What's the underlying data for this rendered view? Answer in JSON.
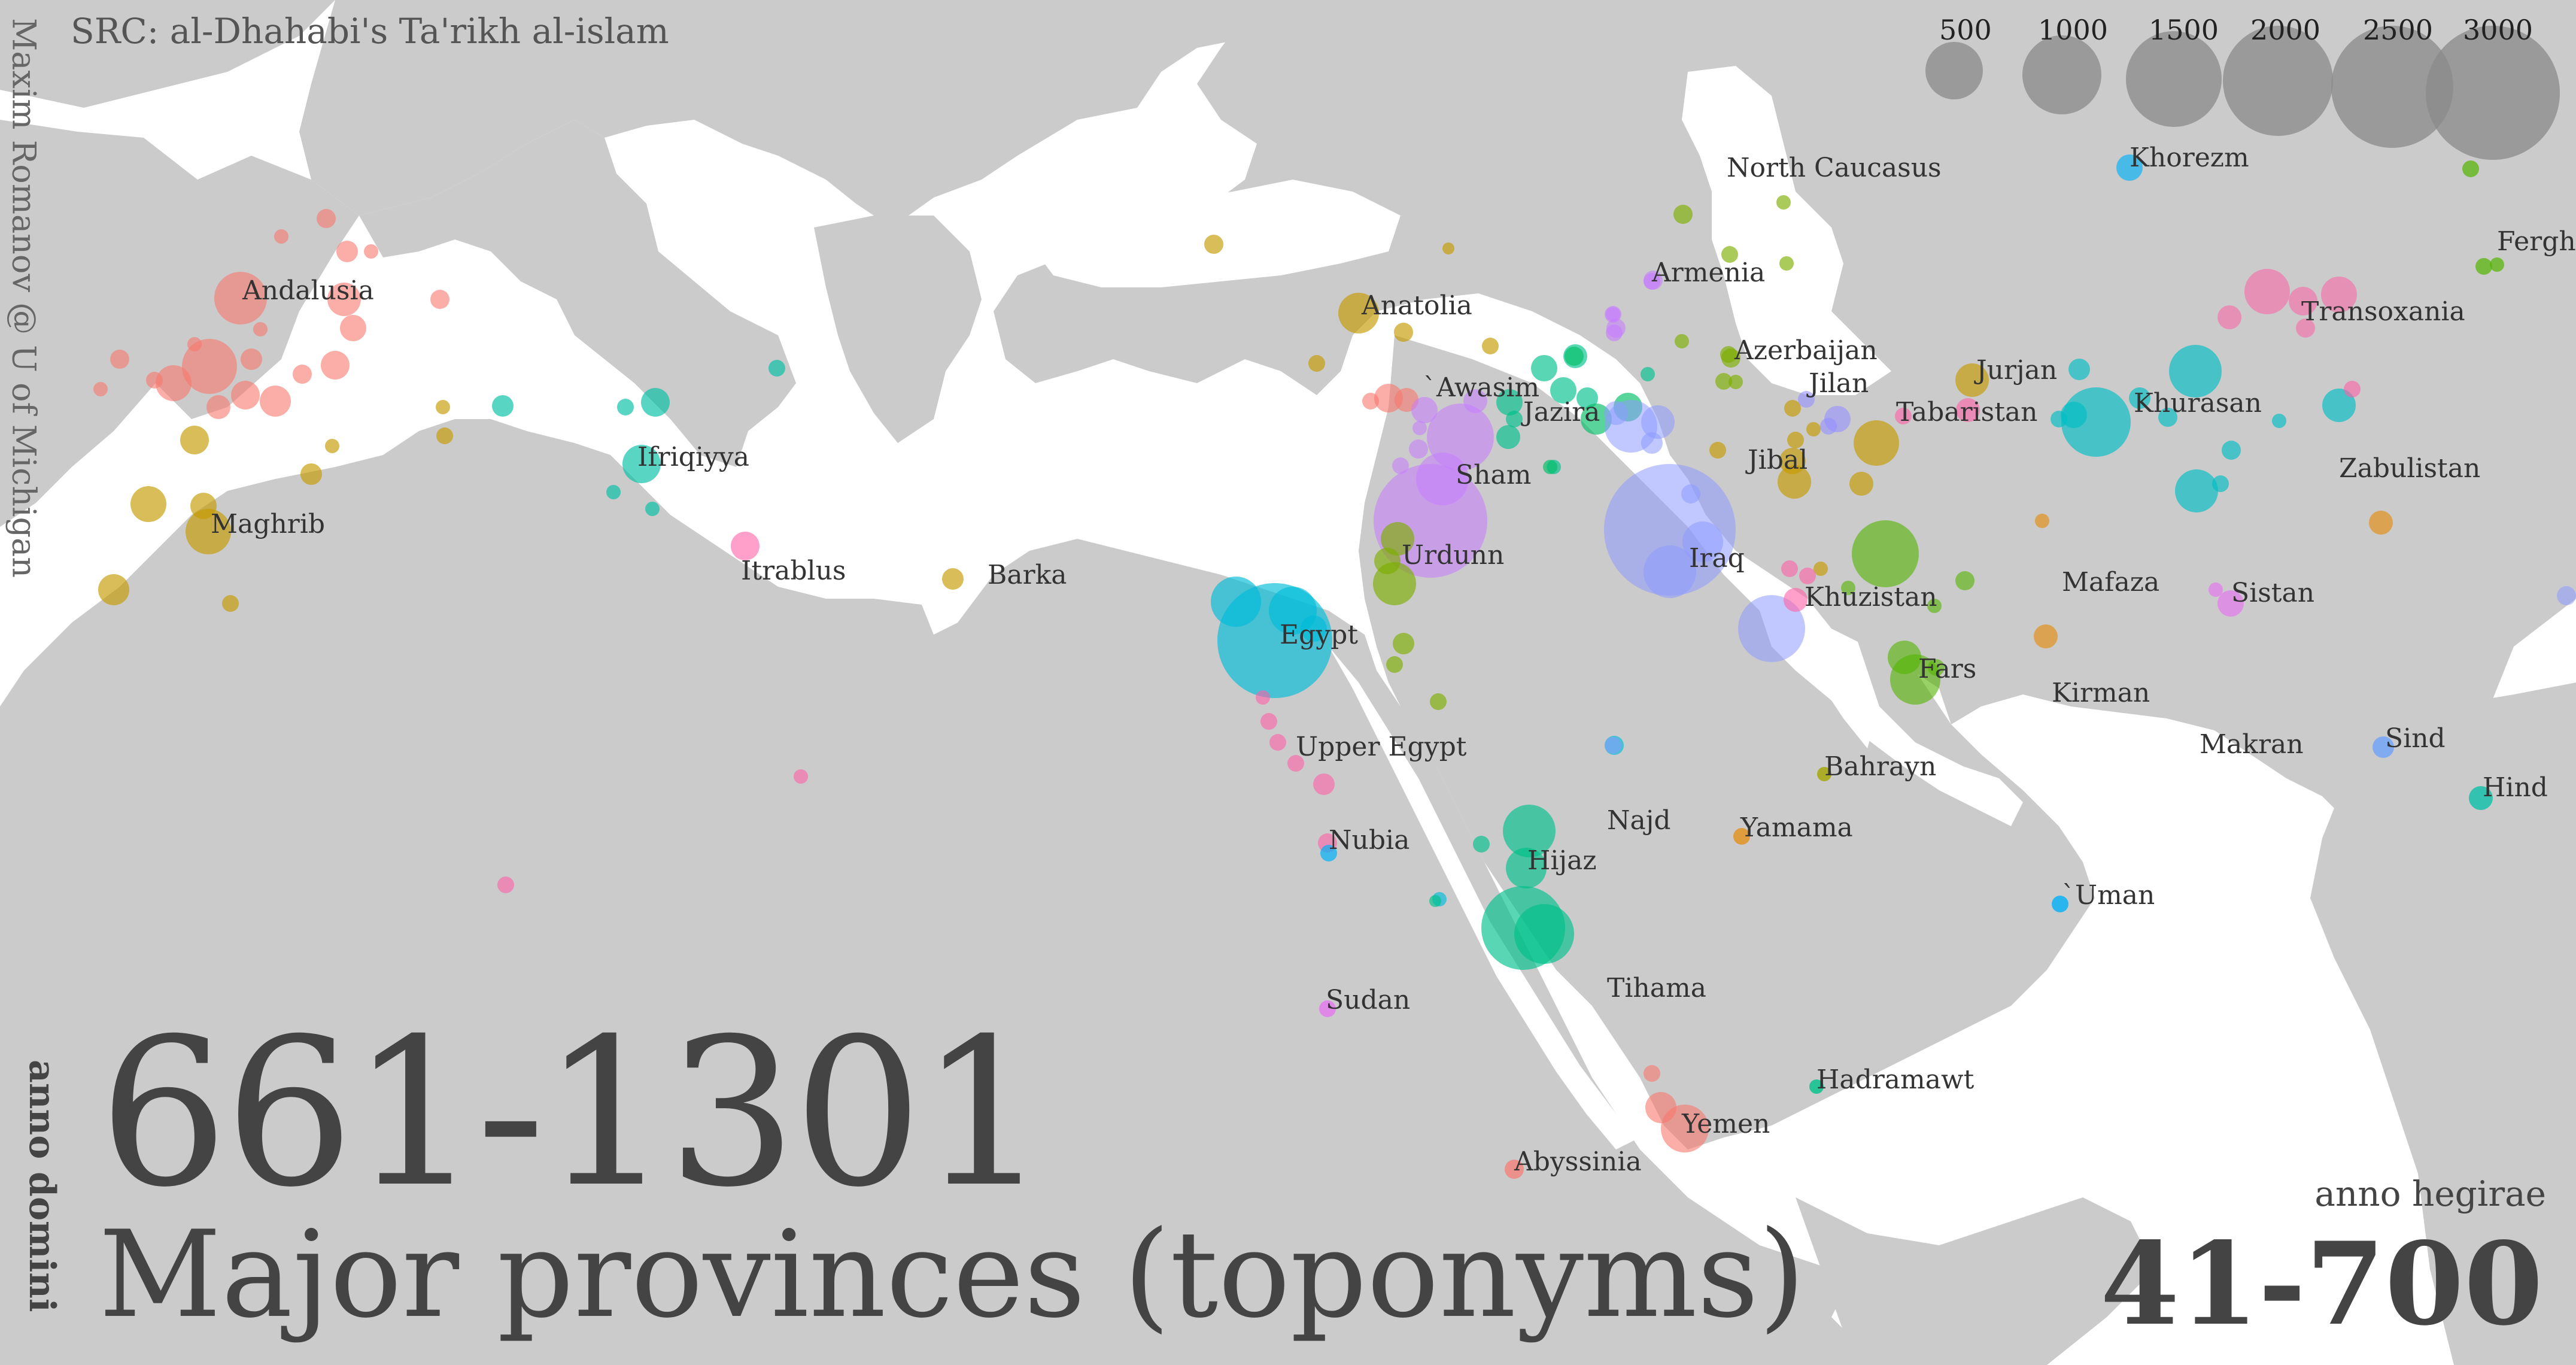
{
  "source": "SRC: al-Dhahabi's Ta'rikh al-islam",
  "author": "Maxim Romanov @ U of Michigan",
  "years_ad": "661-1301",
  "era_ad_label": "anno domini",
  "subtitle": "Major provinces (toponyms)",
  "era_ah_label": "anno hegirae",
  "years_ah": "41-700",
  "colors": {
    "land": "#cbcbcb",
    "legend_circle": "#8a8a8a",
    "water": "#ffffff"
  },
  "legend": [
    {
      "label": "500",
      "value": 500
    },
    {
      "label": "1000",
      "value": 1000
    },
    {
      "label": "1500",
      "value": 1500
    },
    {
      "label": "2000",
      "value": 2000
    },
    {
      "label": "2500",
      "value": 2500
    },
    {
      "label": "3000",
      "value": 3000
    }
  ],
  "provinces": [
    {
      "name": "Andalusia",
      "id": "andalusia"
    },
    {
      "name": "Maghrib",
      "id": "maghrib"
    },
    {
      "name": "Ifriqiyya",
      "id": "ifriqiyya"
    },
    {
      "name": "Itrablus",
      "id": "itrablus"
    },
    {
      "name": "Barka",
      "id": "barka"
    },
    {
      "name": "Anatolia",
      "id": "anatolia"
    },
    {
      "name": "`Awasim",
      "id": "awasim"
    },
    {
      "name": "Sham",
      "id": "sham"
    },
    {
      "name": "Urdunn",
      "id": "urdunn"
    },
    {
      "name": "Egypt",
      "id": "egypt"
    },
    {
      "name": "Upper Egypt",
      "id": "upper-egypt"
    },
    {
      "name": "Nubia",
      "id": "nubia"
    },
    {
      "name": "Sudan",
      "id": "sudan"
    },
    {
      "name": "Hijaz",
      "id": "hijaz"
    },
    {
      "name": "Najd",
      "id": "najd"
    },
    {
      "name": "Tihama",
      "id": "tihama"
    },
    {
      "name": "Yemen",
      "id": "yemen"
    },
    {
      "name": "Abyssinia",
      "id": "abyssinia"
    },
    {
      "name": "Hadramawt",
      "id": "hadramawt"
    },
    {
      "name": "Yamama",
      "id": "yamama"
    },
    {
      "name": "Bahrayn",
      "id": "bahrayn"
    },
    {
      "name": "`Uman",
      "id": "uman"
    },
    {
      "name": "North Caucasus",
      "id": "north-caucasus"
    },
    {
      "name": "Armenia",
      "id": "armenia"
    },
    {
      "name": "Azerbaijan",
      "id": "azerbaijan"
    },
    {
      "name": "Jilan",
      "id": "jilan"
    },
    {
      "name": "Jazira",
      "id": "jazira"
    },
    {
      "name": "Jibal",
      "id": "jibal"
    },
    {
      "name": "Iraq",
      "id": "iraq"
    },
    {
      "name": "Khuzistan",
      "id": "khuzistan"
    },
    {
      "name": "Fars",
      "id": "fars"
    },
    {
      "name": "Kirman",
      "id": "kirman"
    },
    {
      "name": "Makran",
      "id": "makran"
    },
    {
      "name": "Sind",
      "id": "sind"
    },
    {
      "name": "Hind",
      "id": "hind"
    },
    {
      "name": "Mafaza",
      "id": "mafaza"
    },
    {
      "name": "Sistan",
      "id": "sistan"
    },
    {
      "name": "Zabulistan",
      "id": "zabulistan"
    },
    {
      "name": "Khurasan",
      "id": "khurasan"
    },
    {
      "name": "Tabaristan",
      "id": "tabaristan"
    },
    {
      "name": "Jurjan",
      "id": "jurjan"
    },
    {
      "name": "Transoxania",
      "id": "transoxania"
    },
    {
      "name": "Khorezm",
      "id": "khorezm"
    },
    {
      "name": "Fergha",
      "id": "fergha"
    }
  ]
}
